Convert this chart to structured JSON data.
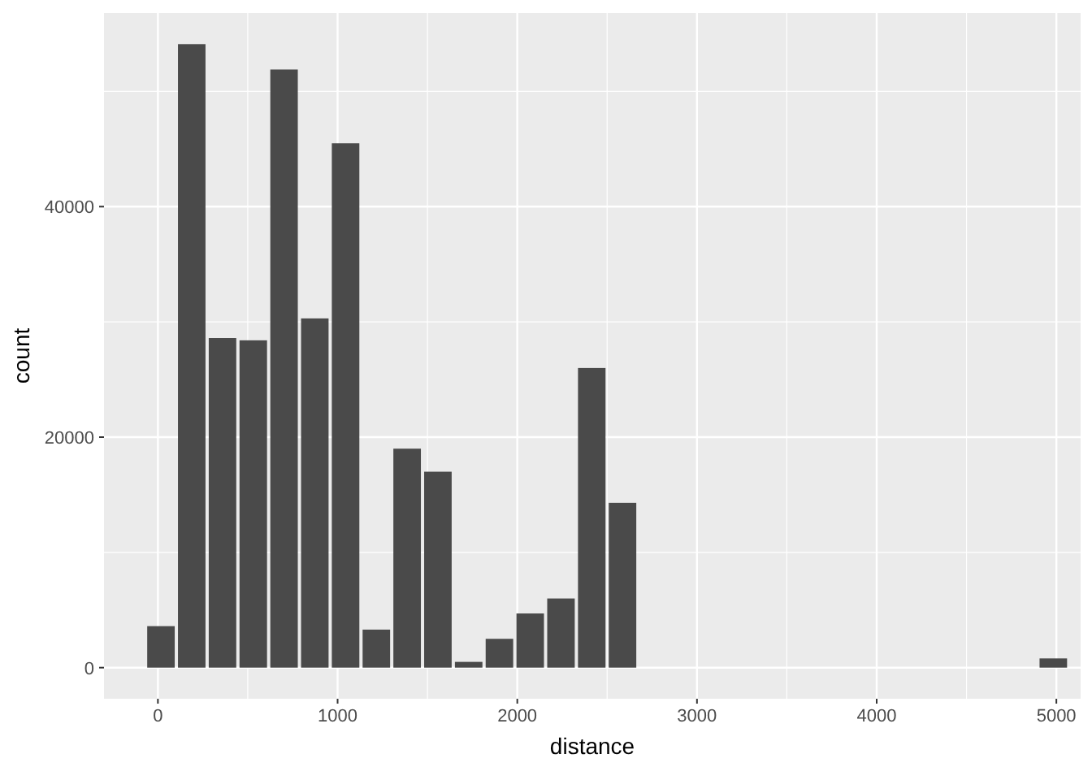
{
  "chart_data": {
    "type": "histogram",
    "xlabel": "distance",
    "ylabel": "count",
    "color": "#4a4a4a",
    "bins": [
      -68.6,
      102.6,
      273.9,
      445.1,
      616.4,
      787.6,
      958.8,
      1130.1,
      1301.3,
      1472.6,
      1643.8,
      1815.0,
      1986.3,
      2157.5,
      2328.8,
      2500.0,
      2671.2,
      2842.5,
      3013.7,
      3185.0,
      3356.2,
      3527.4,
      3698.7,
      3869.9,
      4041.2,
      4212.4,
      4383.6,
      4554.9,
      4726.1,
      4897.4,
      5068.6
    ],
    "values": [
      3600,
      54100,
      28600,
      28400,
      51900,
      30300,
      45500,
      3300,
      19000,
      17000,
      500,
      2500,
      4700,
      6000,
      26000,
      14300,
      0,
      0,
      0,
      0,
      0,
      0,
      0,
      0,
      0,
      0,
      0,
      0,
      0,
      800
    ],
    "xlim": [
      -300,
      5135
    ],
    "ylim": [
      -2700,
      56800
    ],
    "xticks": [
      0,
      {
        "value": 500,
        "label": null
      },
      1000,
      {
        "value": 1500,
        "label": null
      },
      2000,
      {
        "value": 2500,
        "label": null
      },
      3000,
      {
        "value": 3500,
        "label": null
      },
      4000,
      {
        "value": 4500,
        "label": null
      },
      5000
    ],
    "yticks": [
      0,
      {
        "value": 10000,
        "label": null
      },
      20000,
      {
        "value": 30000,
        "label": null
      },
      40000,
      {
        "value": 50000,
        "label": null
      }
    ],
    "grid": true
  }
}
